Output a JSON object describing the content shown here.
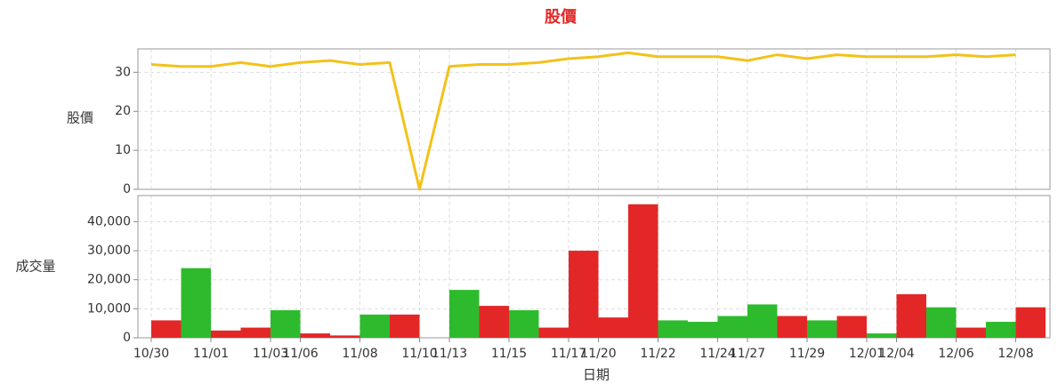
{
  "chart_data": [
    {
      "type": "line",
      "title": "股價",
      "ylabel": "股價",
      "series": [
        {
          "name": "股價",
          "color": "#f2c21b",
          "values": [
            32,
            31.5,
            31.5,
            32.5,
            31.5,
            32.5,
            33,
            32,
            32.5,
            0,
            31.5,
            32,
            32,
            32.5,
            33.5,
            34,
            35,
            34,
            34,
            34,
            33,
            34.5,
            33.5,
            34.5,
            34,
            34,
            34,
            34.5,
            34,
            34.5
          ]
        }
      ],
      "ylim": [
        0,
        36
      ],
      "yticks": [
        0,
        10,
        20,
        30
      ],
      "grid": true
    },
    {
      "type": "bar",
      "ylabel": "成交量",
      "xlabel": "日期",
      "categories": [
        "10/30",
        null,
        "11/01",
        null,
        "11/03",
        "11/06",
        null,
        "11/08",
        null,
        "11/10",
        "11/13",
        null,
        "11/15",
        null,
        "11/17",
        "11/20",
        null,
        "11/22",
        null,
        "11/24",
        "11/27",
        null,
        "11/29",
        null,
        "12/01",
        "12/04",
        null,
        "12/06",
        null,
        "12/08"
      ],
      "values": [
        6000,
        24000,
        2500,
        3500,
        9500,
        1500,
        800,
        8000,
        8000,
        0,
        16500,
        11000,
        9500,
        3500,
        30000,
        7000,
        46000,
        6000,
        5500,
        7500,
        11500,
        7500,
        6000,
        7500,
        1500,
        15000,
        10500,
        3500,
        5500,
        10500
      ],
      "colors": [
        "#e32727",
        "#2dbb2d",
        "#e32727",
        "#e32727",
        "#2dbb2d",
        "#e32727",
        "#e32727",
        "#2dbb2d",
        "#e32727",
        "#e32727",
        "#2dbb2d",
        "#e32727",
        "#2dbb2d",
        "#e32727",
        "#e32727",
        "#e32727",
        "#e32727",
        "#2dbb2d",
        "#2dbb2d",
        "#2dbb2d",
        "#2dbb2d",
        "#e32727",
        "#2dbb2d",
        "#e32727",
        "#2dbb2d",
        "#e32727",
        "#2dbb2d",
        "#e32727",
        "#2dbb2d",
        "#e32727"
      ],
      "ylim": [
        0,
        49000
      ],
      "yticks": [
        0,
        {
          "value": 10000,
          "label": "10,000"
        },
        {
          "value": 20000,
          "label": "20,000"
        },
        {
          "value": 30000,
          "label": "30,000"
        },
        {
          "value": 40000,
          "label": "40,000"
        }
      ],
      "grid": true
    }
  ]
}
